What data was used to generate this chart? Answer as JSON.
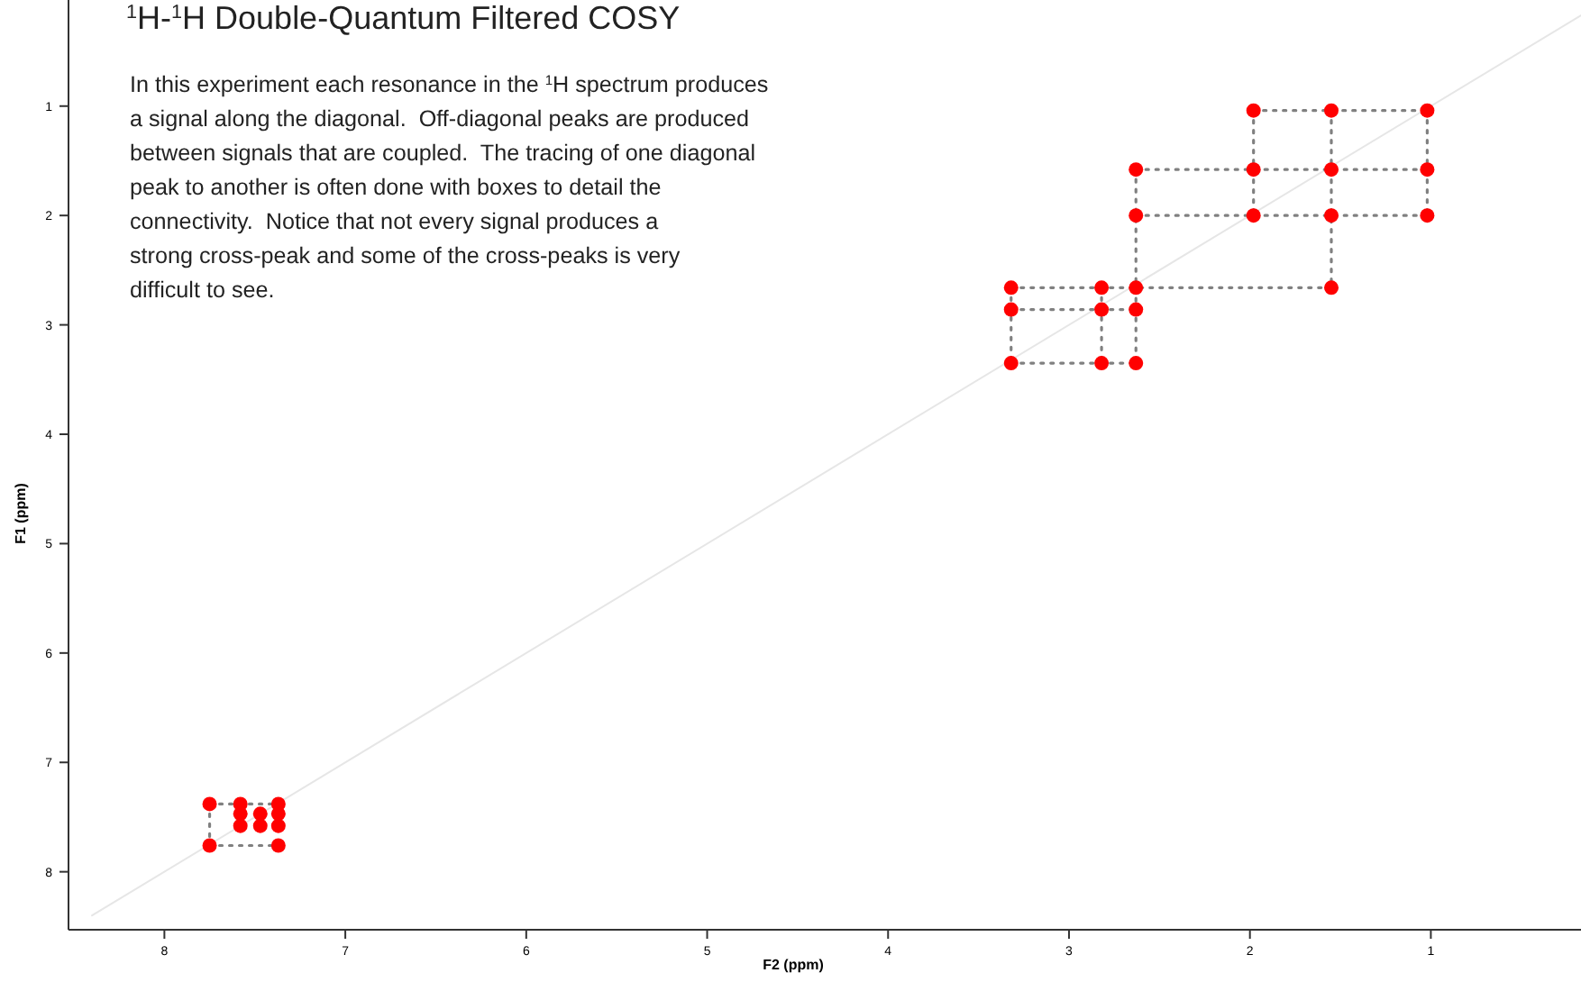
{
  "chart_data": {
    "type": "scatter",
    "title": "$^{1}$H-$^{1}$H Double-Quantum Filtered COSY",
    "annotations": [
      "In this experiment each resonance in the $^{1}$H spectrum produces\na signal along the diagonal.  Off-diagonal peaks are produced\nbetween signals that are coupled.  The tracing of one diagonal\npeak to another is often done with boxes to detail the\nconnectivity.  Notice that not every signal produces a\nstrong cross-peak and some of the cross-peaks is very\ndifficult to see."
    ],
    "xlabel": "F2 (ppm)",
    "ylabel": "F1 (ppm)",
    "xlim": [
      8.53,
      0.17
    ],
    "ylim": [
      8.53,
      0.03
    ],
    "xticks": [
      8,
      7,
      6,
      5,
      4,
      3,
      2,
      1
    ],
    "yticks": [
      1,
      2,
      3,
      4,
      5,
      6,
      7,
      8
    ],
    "grid": false,
    "series": [
      {
        "type": "line",
        "color": "#e6e6e6",
        "line_style": "solid",
        "x": [
          8.4,
          0.17
        ],
        "values": [
          8.4,
          0.17
        ]
      },
      {
        "type": "line",
        "color": "#808080",
        "line_style": "dotted",
        "x": [
          1.98,
          1.02
        ],
        "values": [
          1.04,
          1.04
        ]
      },
      {
        "type": "line",
        "color": "#808080",
        "line_style": "dotted",
        "x": [
          1.98,
          1.98
        ],
        "values": [
          1.04,
          2.0
        ]
      },
      {
        "type": "line",
        "color": "#808080",
        "line_style": "dotted",
        "x": [
          1.55,
          1.55
        ],
        "values": [
          1.04,
          2.66
        ]
      },
      {
        "type": "line",
        "color": "#808080",
        "line_style": "dotted",
        "x": [
          1.02,
          1.02
        ],
        "values": [
          1.04,
          2.0
        ]
      },
      {
        "type": "line",
        "color": "#808080",
        "line_style": "dotted",
        "x": [
          2.63,
          1.02
        ],
        "values": [
          1.58,
          1.58
        ]
      },
      {
        "type": "line",
        "color": "#808080",
        "line_style": "dotted",
        "x": [
          2.63,
          1.02
        ],
        "values": [
          2.0,
          2.0
        ]
      },
      {
        "type": "line",
        "color": "#808080",
        "line_style": "dotted",
        "x": [
          2.63,
          2.63
        ],
        "values": [
          1.58,
          3.35
        ]
      },
      {
        "type": "line",
        "color": "#808080",
        "line_style": "dotted",
        "x": [
          3.32,
          1.55
        ],
        "values": [
          2.66,
          2.66
        ]
      },
      {
        "type": "line",
        "color": "#808080",
        "line_style": "dotted",
        "x": [
          3.32,
          2.63
        ],
        "values": [
          2.86,
          2.86
        ]
      },
      {
        "type": "line",
        "color": "#808080",
        "line_style": "dotted",
        "x": [
          3.32,
          2.63
        ],
        "values": [
          3.35,
          3.35
        ]
      },
      {
        "type": "line",
        "color": "#808080",
        "line_style": "dotted",
        "x": [
          3.32,
          3.32
        ],
        "values": [
          2.66,
          3.35
        ]
      },
      {
        "type": "line",
        "color": "#808080",
        "line_style": "dotted",
        "x": [
          2.82,
          2.82
        ],
        "values": [
          2.66,
          3.35
        ]
      },
      {
        "type": "line",
        "color": "#808080",
        "line_style": "dotted",
        "x": [
          7.75,
          7.37
        ],
        "values": [
          7.38,
          7.38
        ]
      },
      {
        "type": "line",
        "color": "#808080",
        "line_style": "dotted",
        "x": [
          7.75,
          7.37
        ],
        "values": [
          7.76,
          7.76
        ]
      },
      {
        "type": "line",
        "color": "#808080",
        "line_style": "dotted",
        "x": [
          7.75,
          7.75
        ],
        "values": [
          7.38,
          7.76
        ]
      },
      {
        "color": "#ff0000",
        "marker": "circle",
        "x": [
          1.98,
          1.55,
          1.02,
          2.63,
          1.98,
          1.55,
          1.02,
          2.63,
          1.98,
          1.55,
          1.02,
          3.32,
          2.82,
          2.63,
          1.55,
          3.32,
          2.82,
          2.63,
          3.32,
          2.82,
          2.63,
          7.75,
          7.58,
          7.37,
          7.58,
          7.47,
          7.37,
          7.58,
          7.47,
          7.37,
          7.75,
          7.37
        ],
        "values": [
          1.04,
          1.04,
          1.04,
          1.58,
          1.58,
          1.58,
          1.58,
          2.0,
          2.0,
          2.0,
          2.0,
          2.66,
          2.66,
          2.66,
          2.66,
          2.86,
          2.86,
          2.86,
          3.35,
          3.35,
          3.35,
          7.38,
          7.38,
          7.38,
          7.47,
          7.47,
          7.47,
          7.58,
          7.58,
          7.58,
          7.76,
          7.76
        ]
      }
    ]
  }
}
